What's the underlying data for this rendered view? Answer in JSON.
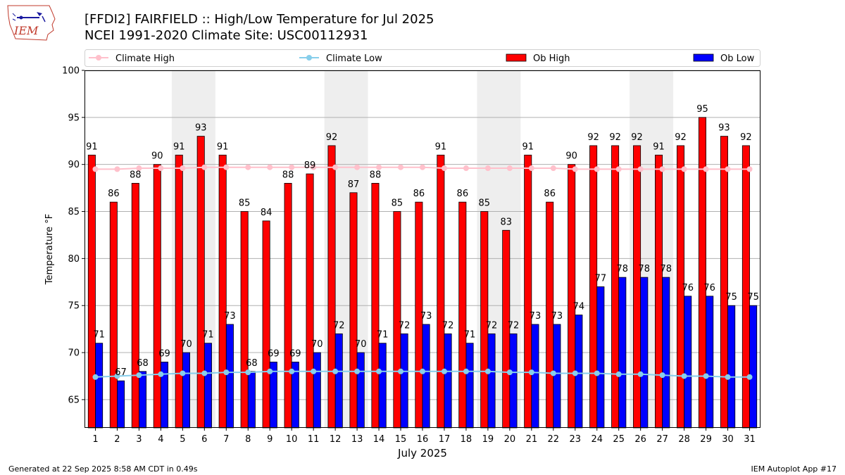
{
  "header": {
    "logo_text": "IEM",
    "title_line1": "[FFDI2] FAIRFIELD :: High/Low Temperature for Jul 2025",
    "title_line2": "NCEI 1991-2020 Climate Site: USC00112931"
  },
  "footer": {
    "generated": "Generated at 22 Sep 2025 8:58 AM CDT in 0.49s",
    "app": "IEM Autoplot App #17"
  },
  "colors": {
    "ob_high": "#ff0000",
    "ob_low": "#0000ff",
    "climate_high": "#ffc0cb",
    "climate_low": "#87ceeb",
    "weekend_shade": "#eeeeee",
    "grid": "#b0b0b0"
  },
  "chart_data": {
    "type": "bar",
    "xlabel": "July 2025",
    "ylabel": "Temperature °F",
    "ylim": [
      62,
      100
    ],
    "yticks": [
      65,
      70,
      75,
      80,
      85,
      90,
      95,
      100
    ],
    "grid": "horizontal",
    "legend_position": "top, above plot",
    "categories": [
      1,
      2,
      3,
      4,
      5,
      6,
      7,
      8,
      9,
      10,
      11,
      12,
      13,
      14,
      15,
      16,
      17,
      18,
      19,
      20,
      21,
      22,
      23,
      24,
      25,
      26,
      27,
      28,
      29,
      30,
      31
    ],
    "shaded_days": [
      [
        5,
        6
      ],
      [
        12,
        13
      ],
      [
        19,
        20
      ],
      [
        26,
        27
      ]
    ],
    "series": [
      {
        "name": "Ob High",
        "type": "bar",
        "values": [
          91,
          86,
          88,
          90,
          91,
          93,
          91,
          85,
          84,
          88,
          89,
          92,
          87,
          88,
          85,
          86,
          91,
          86,
          85,
          83,
          91,
          86,
          90,
          92,
          92,
          92,
          91,
          92,
          95,
          93,
          92
        ]
      },
      {
        "name": "Ob Low",
        "type": "bar",
        "values": [
          71,
          67,
          68,
          69,
          70,
          71,
          73,
          68,
          69,
          69,
          70,
          72,
          70,
          71,
          72,
          73,
          72,
          71,
          72,
          72,
          73,
          73,
          74,
          77,
          78,
          78,
          78,
          76,
          76,
          75,
          75
        ]
      },
      {
        "name": "Climate High",
        "type": "line",
        "values": [
          89.5,
          89.5,
          89.6,
          89.6,
          89.6,
          89.7,
          89.7,
          89.7,
          89.7,
          89.7,
          89.7,
          89.7,
          89.7,
          89.7,
          89.7,
          89.7,
          89.6,
          89.6,
          89.6,
          89.6,
          89.6,
          89.6,
          89.5,
          89.5,
          89.5,
          89.5,
          89.5,
          89.5,
          89.5,
          89.5,
          89.5
        ]
      },
      {
        "name": "Climate Low",
        "type": "line",
        "values": [
          67.4,
          67.5,
          67.6,
          67.7,
          67.8,
          67.8,
          67.9,
          67.9,
          68.0,
          68.0,
          68.0,
          68.0,
          68.0,
          68.0,
          68.0,
          68.0,
          68.0,
          68.0,
          68.0,
          67.9,
          67.9,
          67.8,
          67.8,
          67.8,
          67.7,
          67.7,
          67.6,
          67.5,
          67.5,
          67.4,
          67.4
        ]
      }
    ]
  }
}
